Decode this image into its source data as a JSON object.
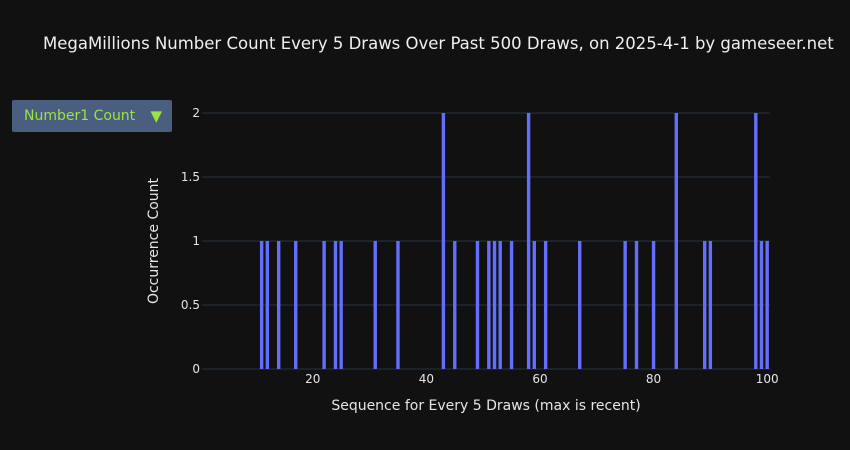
{
  "title": "MegaMillions Number Count Every 5 Draws Over Past 500 Draws, on 2025-4-1 by gameseer.net",
  "dropdown": {
    "selected": "Number1 Count",
    "arrow": "▼"
  },
  "colors": {
    "bar": "#636efa",
    "grid": "#283442",
    "dropdown_bg": "#4a5e80",
    "dropdown_text": "#9be244",
    "background": "#111111"
  },
  "chart_data": {
    "type": "bar",
    "xlabel": "Sequence for Every 5 Draws (max is recent)",
    "ylabel": "Occurrence Count",
    "xlim": [
      0.5,
      100.5
    ],
    "ylim": [
      0,
      2
    ],
    "x_ticks": [
      20,
      40,
      60,
      80,
      100
    ],
    "x_tick_labels": [
      "20",
      "40",
      "60",
      "80",
      "100"
    ],
    "y_ticks": [
      0,
      0.5,
      1,
      1.5,
      2
    ],
    "y_tick_labels": [
      "0",
      "0.5",
      "1",
      "1.5",
      "2"
    ],
    "grid": true,
    "x": [
      11,
      12,
      14,
      17,
      22,
      24,
      25,
      31,
      35,
      43,
      45,
      49,
      51,
      52,
      53,
      55,
      58,
      59,
      61,
      67,
      75,
      77,
      80,
      84,
      89,
      90,
      98,
      99,
      100
    ],
    "values": [
      1,
      1,
      1,
      1,
      1,
      1,
      1,
      1,
      1,
      2,
      1,
      1,
      1,
      1,
      1,
      1,
      2,
      1,
      1,
      1,
      1,
      1,
      1,
      2,
      1,
      1,
      2,
      1,
      1
    ]
  }
}
